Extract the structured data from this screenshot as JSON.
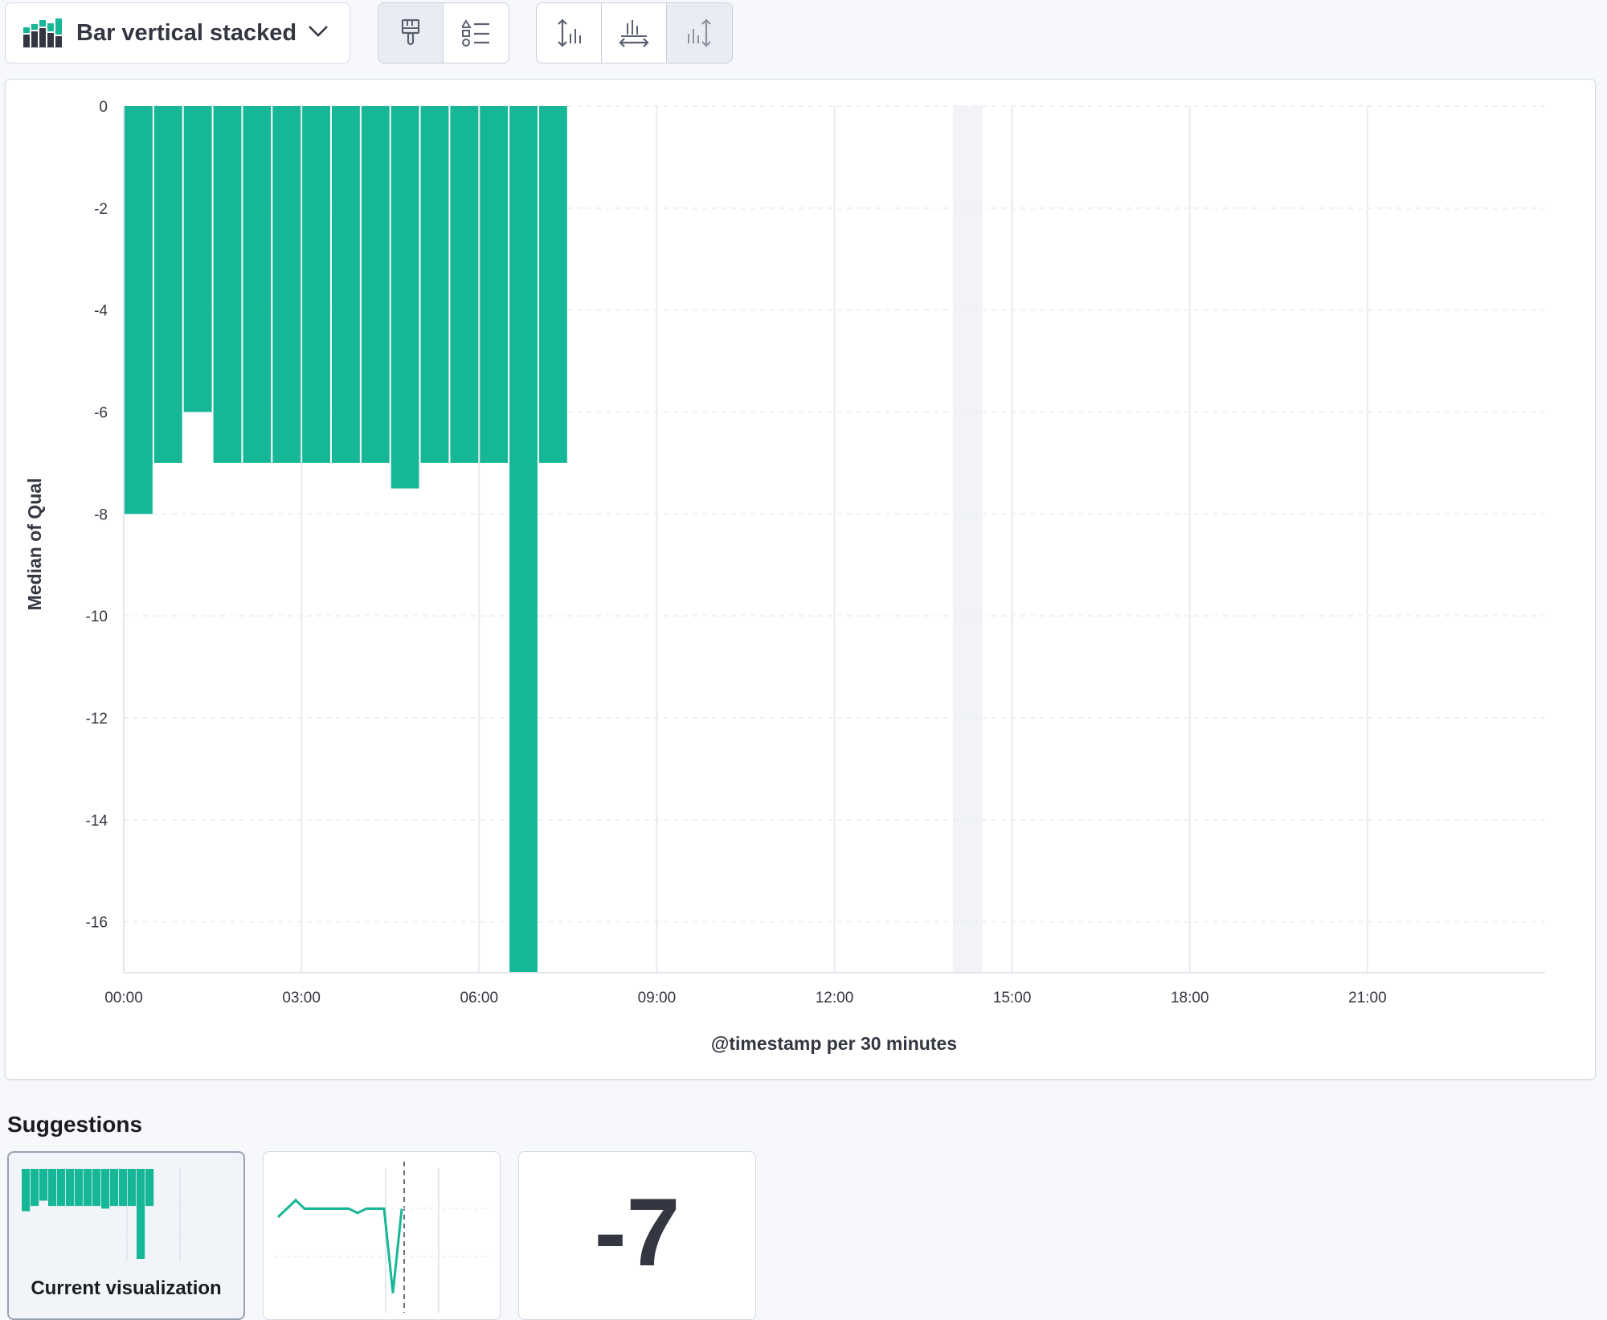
{
  "toolbar": {
    "chart_type_label": "Bar vertical stacked",
    "icons": [
      "bar-chart-icon",
      "chevron-down-icon",
      "paintbrush-icon",
      "legend-icon",
      "left-axis-icon",
      "bottom-axis-icon",
      "right-axis-icon"
    ]
  },
  "chart_data": {
    "type": "bar",
    "stacked": true,
    "xlabel": "@timestamp per 30 minutes",
    "ylabel": "Median of Qual",
    "x_ticks": [
      "00:00",
      "03:00",
      "06:00",
      "09:00",
      "12:00",
      "15:00",
      "18:00",
      "21:00"
    ],
    "y_ticks": [
      0,
      -2,
      -4,
      -6,
      -8,
      -10,
      -12,
      -14,
      -16
    ],
    "ylim": [
      -17,
      0
    ],
    "x_range": [
      "00:00",
      "24:00"
    ],
    "categories": [
      "00:00",
      "00:30",
      "01:00",
      "01:30",
      "02:00",
      "02:30",
      "03:00",
      "03:30",
      "04:00",
      "04:30",
      "05:00",
      "05:30",
      "06:00",
      "06:30",
      "07:00"
    ],
    "values": [
      -8,
      -7,
      -6,
      -7,
      -7,
      -7,
      -7,
      -7,
      -7,
      -7.5,
      -7,
      -7,
      -7,
      -17,
      -7
    ],
    "highlight_band": [
      "14:00",
      "14:30"
    ],
    "bar_color": "#16b796",
    "grid": true
  },
  "suggestions": {
    "title": "Suggestions",
    "current_label": "Current visualization",
    "metric_value": "-7"
  }
}
